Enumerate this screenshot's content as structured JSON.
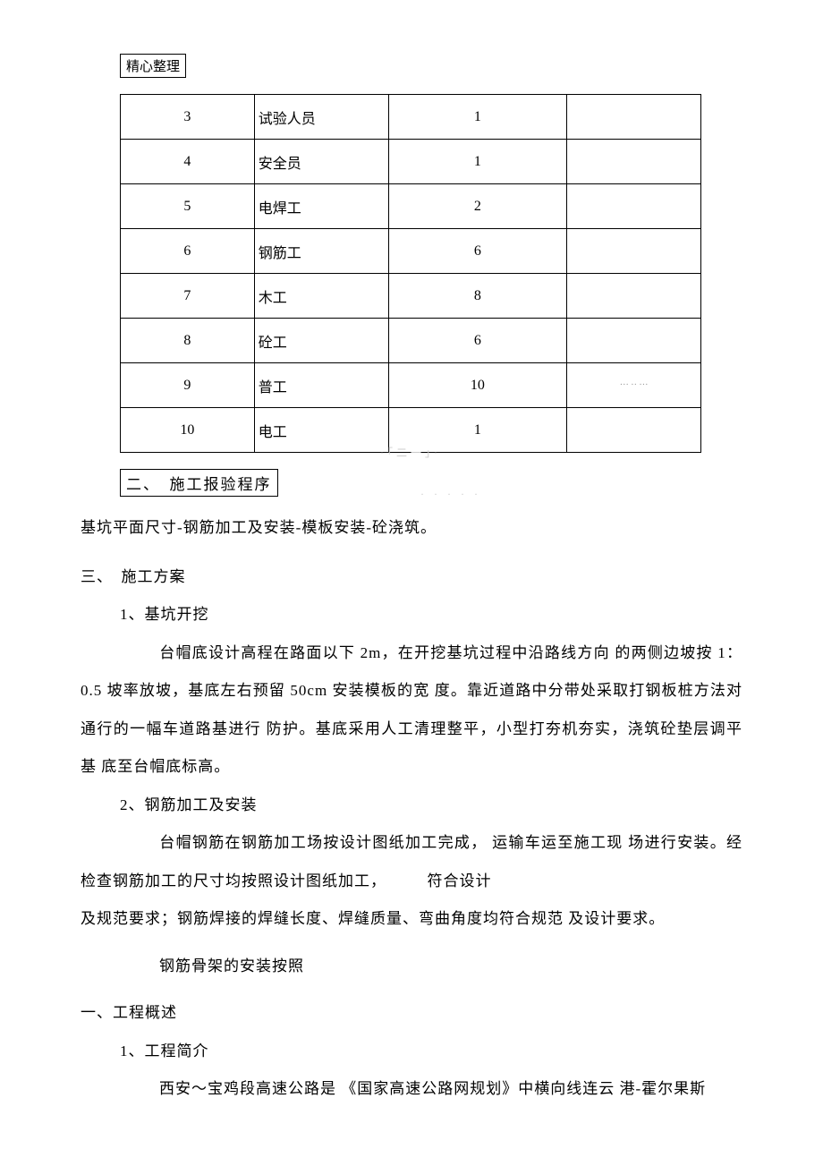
{
  "header": {
    "label": "精心整理"
  },
  "table": {
    "rows": [
      {
        "num": "3",
        "role": "试验人员",
        "count": "1",
        "note": ""
      },
      {
        "num": "4",
        "role": "安全员",
        "count": "1",
        "note": ""
      },
      {
        "num": "5",
        "role": "电焊工",
        "count": "2",
        "note": ""
      },
      {
        "num": "6",
        "role": "钢筋工",
        "count": "6",
        "note": ""
      },
      {
        "num": "7",
        "role": "木工",
        "count": "8",
        "note": ""
      },
      {
        "num": "8",
        "role": "砼工",
        "count": "6",
        "note": ""
      },
      {
        "num": "9",
        "role": "普工",
        "count": "10",
        "note": "··· ·· ···"
      },
      {
        "num": "10",
        "role": "电工",
        "count": "1",
        "note": ""
      }
    ]
  },
  "section2": {
    "heading": "二、　施工报验程序",
    "watermark1": "·「二一」·",
    "line": "基坑平面尺寸-钢筋加工及安装-模板安装-砼浇筑。",
    "watermark2": "· · · · ·"
  },
  "section3": {
    "heading": "三、　施工方案",
    "sub1": {
      "title": "1、基坑开挖",
      "body": "台帽底设计高程在路面以下 2m，在开挖基坑过程中沿路线方向 的两侧边坡按 1：0.5 坡率放坡，基底左右预留 50cm 安装模板的宽 度。靠近道路中分带处采取打钢板桩方法对通行的一幅车道路基进行 防护。基底采用人工清理整平，小型打夯机夯实，浇筑砼垫层调平基 底至台帽底标高。"
    },
    "sub2": {
      "title": "2、钢筋加工及安装",
      "body1": "台帽钢筋在钢筋加工场按设计图纸加工完成， 运输车运至施工现 场进行安装。经检查钢筋加工的尺寸均按照设计图纸加工，　　　符合设计",
      "body2": "及规范要求；钢筋焊接的焊缝长度、焊缝质量、弯曲角度均符合规范 及设计要求。",
      "body3": "钢筋骨架的安装按照"
    }
  },
  "section1b": {
    "heading": "一、工程概述",
    "sub1": {
      "title": "1、工程简介",
      "body": "西安～宝鸡段高速公路是 《国家高速公路网规划》中横向线连云 港-霍尔果斯"
    }
  }
}
